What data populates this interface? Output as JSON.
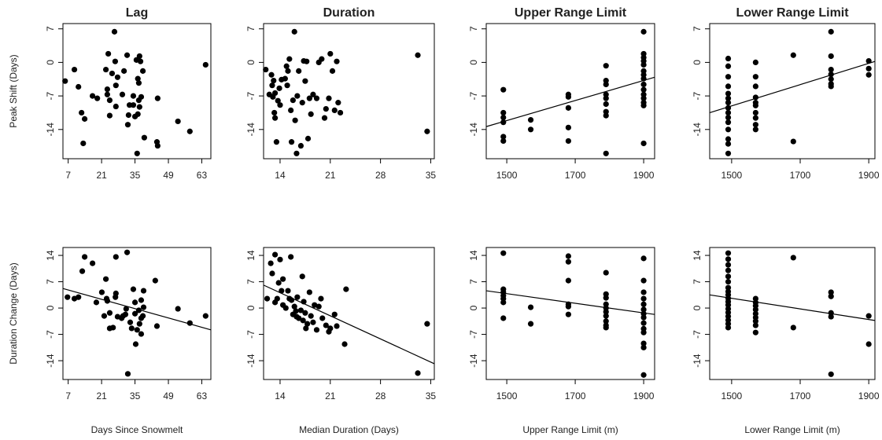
{
  "chart_data": [
    {
      "type": "scatter",
      "title": "Lag",
      "ylabel": "Peak Shift (Days)",
      "x": [
        5.7,
        9.6,
        11.3,
        12.6,
        13.9,
        13.3,
        17.2,
        19.2,
        23.8,
        22.8,
        23.4,
        23.4,
        24.4,
        25.4,
        26.4,
        26.7,
        27.7,
        27,
        27,
        24.4,
        30.4,
        29.7,
        31.7,
        32.3,
        32,
        32.7,
        34.3,
        34.3,
        35.6,
        36.9,
        37.3,
        36.2,
        36.6,
        36.6,
        36.9,
        36.2,
        37.6,
        35.9,
        38.3,
        38.9,
        44.2,
        44.5,
        44.5,
        53,
        58,
        64.6,
        35
      ],
      "values": [
        -3.9,
        -1.5,
        -5.1,
        -10.5,
        -11.8,
        -16.9,
        -7,
        -7.5,
        1.8,
        -1.5,
        -5.6,
        -6.7,
        -11.1,
        -2.3,
        6.4,
        0.2,
        -3.1,
        -4.8,
        -9.2,
        -7.9,
        -1.8,
        -6.7,
        1.5,
        -11,
        -13,
        -8.9,
        -7,
        -8.9,
        0.5,
        1.3,
        0.2,
        -3.4,
        -4.3,
        -7.9,
        -9.3,
        -10.8,
        -7.2,
        -19,
        -1.8,
        -15.7,
        -16.6,
        -17.4,
        -7.5,
        -12.3,
        -14.4,
        -0.5,
        -11.3
      ],
      "xlim": [
        4.8,
        66.8
      ],
      "ylim": [
        -20.1,
        8.1
      ],
      "xticks": [
        7,
        21,
        35,
        49,
        63
      ],
      "yticks": [
        -14,
        -7,
        0,
        7
      ]
    },
    {
      "type": "scatter",
      "title": "Duration",
      "x": [
        12,
        12.5,
        12.8,
        12.9,
        13.1,
        13.3,
        13,
        13.2,
        13.3,
        13.5,
        13.7,
        13.9,
        14,
        14.2,
        14.7,
        14.9,
        15,
        15.1,
        15.3,
        15.5,
        15.6,
        15.8,
        16,
        16.1,
        16.3,
        16.4,
        16.6,
        16.9,
        17.1,
        17.3,
        17.5,
        17.7,
        17.9,
        18.1,
        18.3,
        18.6,
        19.1,
        19.4,
        19.8,
        20.2,
        20.4,
        20.8,
        21,
        21.3,
        21.6,
        21.9,
        22.1,
        22.4,
        33.2,
        34.5
      ],
      "values": [
        -1.5,
        -6.7,
        -2.6,
        -4.8,
        -3.8,
        -6.4,
        -7.2,
        -10.5,
        -11.6,
        -16.6,
        -8,
        -5.4,
        -8.9,
        -3.6,
        -3.4,
        -0.8,
        -4.8,
        -1.8,
        0.7,
        -10,
        -16.6,
        -7.9,
        6.4,
        -12.1,
        -19,
        -7,
        -1.8,
        -17.4,
        -8.4,
        0.3,
        -3.9,
        0.2,
        -15.9,
        -7.5,
        -10.8,
        -6.7,
        -7.5,
        0,
        0.7,
        -11.6,
        -9.7,
        -7.5,
        1.8,
        -1.8,
        -10,
        0.2,
        -8.4,
        -10.5,
        1.5,
        -14.4
      ],
      "xlim": [
        11.7,
        35.5
      ],
      "ylim": [
        -20.1,
        8.1
      ],
      "xticks": [
        14,
        21,
        28,
        35
      ],
      "yticks": [
        -14,
        -7,
        0,
        7
      ]
    },
    {
      "type": "scatter",
      "title": "Upper Range Limit",
      "x": [
        1490,
        1490,
        1490,
        1490,
        1490,
        1490,
        1570,
        1570,
        1680,
        1680,
        1680,
        1680,
        1680,
        1790,
        1790,
        1790,
        1790,
        1790,
        1790,
        1790,
        1790,
        1790,
        1900,
        1900,
        1900,
        1900,
        1900,
        1900,
        1900,
        1900,
        1900,
        1900,
        1900,
        1900,
        1900,
        1900,
        1900
      ],
      "values": [
        -5.7,
        -10.5,
        -11.5,
        -12.5,
        -15.5,
        -16.4,
        -12,
        -14,
        -6.7,
        -7.2,
        -9.5,
        -13.6,
        -16.4,
        -0.7,
        -3.8,
        -4.6,
        -6.7,
        -7.5,
        -8.7,
        -10.3,
        -11.1,
        -19,
        6.4,
        1.8,
        1,
        0.3,
        -0.5,
        -1.8,
        -2.6,
        -3.4,
        -4.6,
        -5.7,
        -6.7,
        -7.5,
        -8.4,
        -9,
        -16.9
      ],
      "trend": {
        "x": [
          1440,
          1932
        ],
        "values": [
          -13.4,
          -3.1
        ]
      },
      "xlim": [
        1440,
        1932
      ],
      "ylim": [
        -20.1,
        8.1
      ],
      "xticks": [
        1500,
        1700,
        1900
      ],
      "yticks": [
        -14,
        -7,
        0,
        7
      ]
    },
    {
      "type": "scatter",
      "title": "Lower Range Limit",
      "x": [
        1490,
        1490,
        1490,
        1490,
        1490,
        1490,
        1490,
        1490,
        1490,
        1490,
        1490,
        1490,
        1490,
        1490,
        1490,
        1570,
        1570,
        1570,
        1570,
        1570,
        1570,
        1570,
        1570,
        1570,
        1570,
        1680,
        1680,
        1790,
        1790,
        1790,
        1790,
        1790,
        1790,
        1790,
        1900,
        1900,
        1900
      ],
      "values": [
        0.8,
        -0.8,
        -3,
        -5,
        -6.5,
        -7.5,
        -8.4,
        -9.5,
        -10.5,
        -11.5,
        -12.5,
        -14,
        -16,
        -17,
        -19,
        0,
        -3,
        -5,
        -7.3,
        -8.4,
        -9,
        -10.5,
        -11.6,
        -13,
        -14,
        1.5,
        -16.5,
        6.4,
        1.3,
        -1.5,
        -2.5,
        -3.5,
        -4.5,
        -5,
        0.3,
        -1.3,
        -2.6
      ],
      "trend": {
        "x": [
          1436,
          1918
        ],
        "values": [
          -10.5,
          0.2
        ]
      },
      "xlim": [
        1436,
        1918
      ],
      "ylim": [
        -20.1,
        8.1
      ],
      "xticks": [
        1500,
        1700,
        1900
      ],
      "yticks": [
        -14,
        -7,
        0,
        7
      ]
    },
    {
      "type": "scatter",
      "xlabel": "Days Since Snowmelt",
      "ylabel": "Duration Change (Days)",
      "x": [
        6.7,
        9.6,
        11.3,
        12.9,
        13.9,
        17.2,
        18.8,
        21.1,
        22.8,
        23.1,
        23.4,
        22.1,
        24.4,
        24.4,
        25.8,
        26.8,
        27,
        27,
        27.7,
        29.4,
        30,
        31,
        31.3,
        31.7,
        32,
        33,
        33.6,
        34.3,
        35,
        35,
        35.3,
        35.9,
        36.6,
        37.6,
        37.6,
        36.9,
        37.6,
        38.3,
        38.6,
        38.6,
        43.5,
        44.2,
        53,
        58,
        64.6
      ],
      "values": [
        2.9,
        2.5,
        2.9,
        9.8,
        13.6,
        11.9,
        1.5,
        4.2,
        7.7,
        2.5,
        1.9,
        -2.1,
        -1.3,
        -5.4,
        -5.2,
        2.9,
        3.9,
        13.6,
        -2.3,
        -2.7,
        -2.1,
        -1.7,
        -0.2,
        14.8,
        -17.5,
        -3.8,
        -5.4,
        5,
        1.5,
        -1.5,
        -9.6,
        -5.8,
        -0.6,
        2.1,
        -2.7,
        -4.2,
        -6.9,
        -2.1,
        4.6,
        0.2,
        7.3,
        -4.8,
        -0.2,
        -4,
        -2.1
      ],
      "trend": {
        "x": [
          4.8,
          66.8
        ],
        "values": [
          5.2,
          -5.8
        ]
      },
      "xlim": [
        4.8,
        66.8
      ],
      "ylim": [
        -19,
        16.1
      ],
      "xticks": [
        7,
        21,
        35,
        49,
        63
      ],
      "yticks": [
        -14,
        -7,
        0,
        7,
        14
      ]
    },
    {
      "type": "scatter",
      "xlabel": "Median Duration (Days)",
      "x": [
        12.2,
        12.7,
        12.9,
        13.3,
        13.3,
        13.6,
        13.8,
        14,
        14.2,
        14.4,
        14.4,
        14.8,
        15.1,
        15.3,
        15.5,
        15.6,
        15.8,
        16,
        16.2,
        16.3,
        16.4,
        16.6,
        16.9,
        17.1,
        17.2,
        17.3,
        17.5,
        17.6,
        17.8,
        18.1,
        18.3,
        18.6,
        18.8,
        19.1,
        19.4,
        19.7,
        19.9,
        20.4,
        20.8,
        21,
        21.6,
        21.9,
        23,
        23.2,
        33.2,
        34.5
      ],
      "values": [
        2.5,
        11.9,
        9.2,
        14.2,
        1.5,
        2.5,
        6.7,
        12.9,
        4.6,
        7.7,
        0.8,
        0,
        4.6,
        2.5,
        13.6,
        2.1,
        -1.7,
        0.4,
        -0.8,
        -2.3,
        2.9,
        -2.7,
        -0.6,
        8.4,
        -3.3,
        1.7,
        -1.3,
        -5.4,
        -4.2,
        4.2,
        -2.1,
        -3.8,
        0.8,
        -5.8,
        0.4,
        2.5,
        -2.7,
        -4.6,
        -6.3,
        -5.4,
        -1.7,
        -4.8,
        -9.6,
        5,
        -17.3,
        -4.2
      ],
      "trend": {
        "x": [
          11.7,
          35.5
        ],
        "values": [
          6.1,
          -14.8
        ]
      },
      "xlim": [
        11.7,
        35.5
      ],
      "ylim": [
        -19,
        16.1
      ],
      "xticks": [
        14,
        21,
        28,
        35
      ],
      "yticks": [
        -14,
        -7,
        0,
        7,
        14
      ]
    },
    {
      "type": "scatter",
      "xlabel": "Upper Range Limit (m)",
      "x": [
        1490,
        1490,
        1490,
        1490,
        1490,
        1490,
        1490,
        1570,
        1570,
        1680,
        1680,
        1680,
        1680,
        1680,
        1680,
        1790,
        1790,
        1790,
        1790,
        1790,
        1790,
        1790,
        1790,
        1790,
        1790,
        1900,
        1900,
        1900,
        1900,
        1900,
        1900,
        1900,
        1900,
        1900,
        1900,
        1900,
        1900,
        1900,
        1900
      ],
      "values": [
        14.6,
        5,
        4.2,
        3.3,
        2.5,
        1.5,
        -2.7,
        0.2,
        -4.2,
        13.8,
        12.3,
        7.3,
        1,
        0.4,
        -1.7,
        9.4,
        3.7,
        2.7,
        1,
        0,
        -1,
        -2.1,
        -3.5,
        -4.6,
        -5.2,
        13.2,
        7.3,
        4.2,
        2.5,
        1,
        -0.4,
        -1.5,
        -2.5,
        -4,
        -5.5,
        -6.5,
        -9.4,
        -10.5,
        -17.8
      ],
      "trend": {
        "x": [
          1440,
          1932
        ],
        "values": [
          4.6,
          -1.7
        ]
      },
      "xlim": [
        1440,
        1932
      ],
      "ylim": [
        -19,
        16.1
      ],
      "xticks": [
        1500,
        1700,
        1900
      ],
      "yticks": [
        -14,
        -7,
        0,
        7,
        14
      ]
    },
    {
      "type": "scatter",
      "xlabel": "Lower Range Limit (m)",
      "x": [
        1490,
        1490,
        1490,
        1490,
        1490,
        1490,
        1490,
        1490,
        1490,
        1490,
        1490,
        1490,
        1490,
        1490,
        1490,
        1490,
        1490,
        1490,
        1570,
        1570,
        1570,
        1570,
        1570,
        1570,
        1570,
        1570,
        1570,
        1680,
        1680,
        1790,
        1790,
        1790,
        1790,
        1790,
        1900,
        1900
      ],
      "values": [
        14.6,
        13,
        11.5,
        10,
        8.4,
        7,
        5.4,
        4.4,
        3.5,
        2.6,
        1.7,
        0.8,
        -0.2,
        -1.2,
        -2.2,
        -3.2,
        -4.2,
        -5.2,
        2.5,
        1.5,
        0.6,
        -0.4,
        -1.5,
        -2.5,
        -3.5,
        -4.6,
        -6.5,
        13.4,
        -5.2,
        4.2,
        3.1,
        -1.3,
        -2.3,
        -17.6,
        -2.1,
        -9.6
      ],
      "trend": {
        "x": [
          1436,
          1918
        ],
        "values": [
          3.5,
          -3.3
        ]
      },
      "xlim": [
        1436,
        1918
      ],
      "ylim": [
        -19,
        16.1
      ],
      "xticks": [
        1500,
        1700,
        1900
      ],
      "yticks": [
        -14,
        -7,
        0,
        7,
        14
      ]
    }
  ]
}
